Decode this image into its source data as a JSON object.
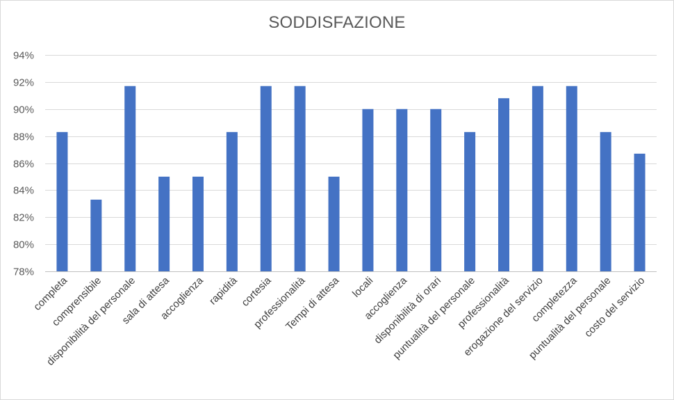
{
  "chart_data": {
    "type": "bar",
    "title": "SODDISFAZIONE",
    "categories": [
      "completa",
      "comprensibile",
      "disponibilità del personale",
      "sala di attesa",
      "accoglienza",
      "rapidità",
      "cortesia",
      "professionalità",
      "Tempi di attesa",
      "locali",
      "accoglienza",
      "disponibilità di orari",
      "puntualità del personale",
      "professionalità",
      "erogazione del servizio",
      "completezza",
      "puntualità del personale",
      "costo del servizio"
    ],
    "values": [
      88.3,
      83.3,
      91.7,
      85.0,
      85.0,
      88.3,
      91.7,
      91.7,
      85.0,
      90.0,
      90.0,
      90.0,
      88.3,
      90.8,
      91.7,
      91.7,
      88.3,
      86.7
    ],
    "ylim": [
      78,
      94
    ],
    "yticks": [
      "78%",
      "80%",
      "82%",
      "84%",
      "86%",
      "88%",
      "90%",
      "92%",
      "94%"
    ],
    "ytick_values": [
      78,
      80,
      82,
      84,
      86,
      88,
      90,
      92,
      94
    ],
    "grid": true,
    "bar_color": "#4472c4",
    "xlabel": "",
    "ylabel": ""
  }
}
